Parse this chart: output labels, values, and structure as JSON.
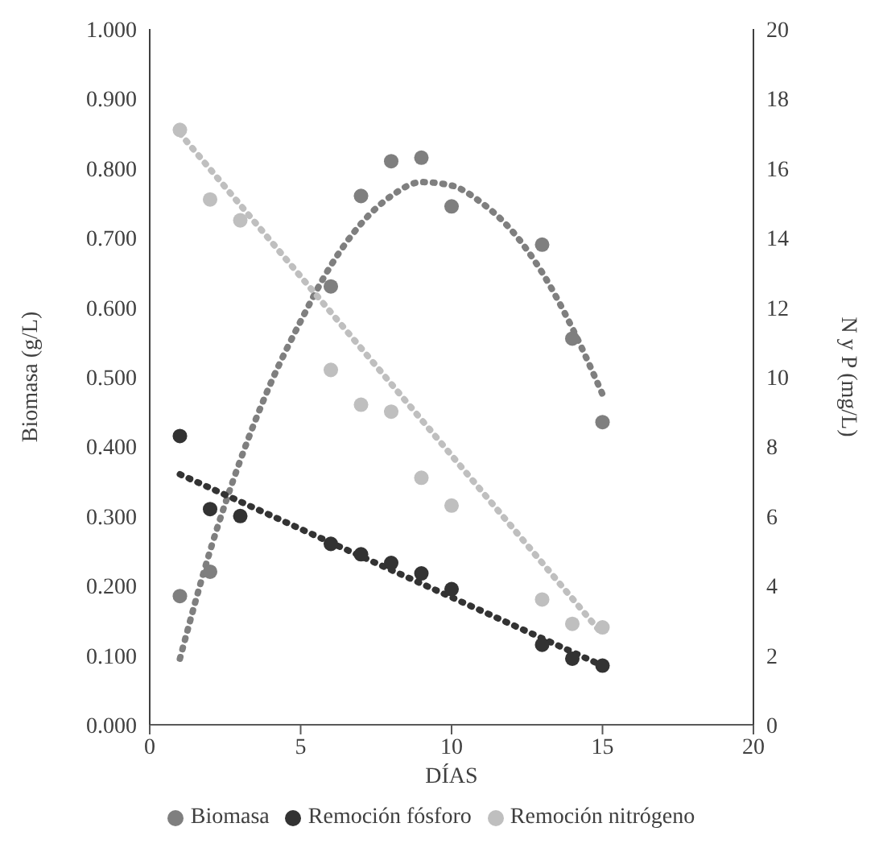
{
  "chart_data": {
    "type": "scatter",
    "xlabel": "DÍAS",
    "ylabel": "Biomasa (g/L)",
    "y2label": "N y P (mg/L)",
    "x": [
      1,
      2,
      3,
      6,
      7,
      8,
      9,
      10,
      13,
      14,
      15
    ],
    "series": [
      {
        "name": "Biomasa",
        "color": "#7f7f7f",
        "x": [
          1,
          2,
          6,
          7,
          8,
          9,
          10,
          13,
          14,
          15
        ],
        "values": [
          0.185,
          0.22,
          0.63,
          0.76,
          0.81,
          0.815,
          0.745,
          0.69,
          0.555,
          0.435
        ]
      },
      {
        "name": "Remoción fósforo",
        "color": "#333333",
        "axis": "y2",
        "values": [
          8.3,
          6.2,
          6.0,
          5.2,
          4.9,
          4.65,
          4.35,
          3.9,
          2.3,
          1.9,
          1.7
        ]
      },
      {
        "name": "Remoción nitrógeno",
        "color": "#bfbfbf",
        "axis": "y2",
        "values": [
          17.1,
          15.1,
          14.5,
          10.2,
          9.2,
          9.0,
          7.1,
          6.3,
          3.6,
          2.9,
          2.8
        ]
      },
      {
        "type": "line",
        "marker": "none",
        "color": "#7f7f7f",
        "line_style": "dotted",
        "x": [
          1,
          2,
          3,
          4,
          5,
          6,
          7,
          8,
          9,
          10,
          11,
          12,
          13,
          14,
          15
        ],
        "values": [
          0.095,
          0.25,
          0.38,
          0.49,
          0.58,
          0.66,
          0.72,
          0.76,
          0.78,
          0.775,
          0.75,
          0.71,
          0.65,
          0.57,
          0.475
        ]
      },
      {
        "type": "line",
        "marker": "none",
        "color": "#333333",
        "line_style": "dotted",
        "axis": "y2",
        "x": [
          1,
          15
        ],
        "values": [
          7.2,
          1.7
        ]
      },
      {
        "type": "line",
        "marker": "none",
        "color": "#bfbfbf",
        "line_style": "dotted",
        "axis": "y2",
        "x": [
          1,
          15
        ],
        "values": [
          17.0,
          2.6
        ]
      }
    ],
    "xlim": [
      0,
      20
    ],
    "xticks": [
      0,
      5,
      10,
      15,
      20
    ],
    "ylim": [
      0,
      1
    ],
    "yticks": [
      {
        "value": 0,
        "label": "0.000"
      },
      {
        "value": 0.1,
        "label": "0.100"
      },
      {
        "value": 0.2,
        "label": "0.200"
      },
      {
        "value": 0.3,
        "label": "0.300"
      },
      {
        "value": 0.4,
        "label": "0.400"
      },
      {
        "value": 0.5,
        "label": "0.500"
      },
      {
        "value": 0.6,
        "label": "0.600"
      },
      {
        "value": 0.7,
        "label": "0.700"
      },
      {
        "value": 0.8,
        "label": "0.800"
      },
      {
        "value": 0.9,
        "label": "0.900"
      },
      {
        "value": 1,
        "label": "1.000"
      }
    ],
    "y2lim": [
      0,
      20
    ],
    "y2ticks": [
      0,
      2,
      4,
      6,
      8,
      10,
      12,
      14,
      16,
      18,
      20
    ],
    "marker": "circle",
    "grid": false,
    "legend": "bottom"
  }
}
